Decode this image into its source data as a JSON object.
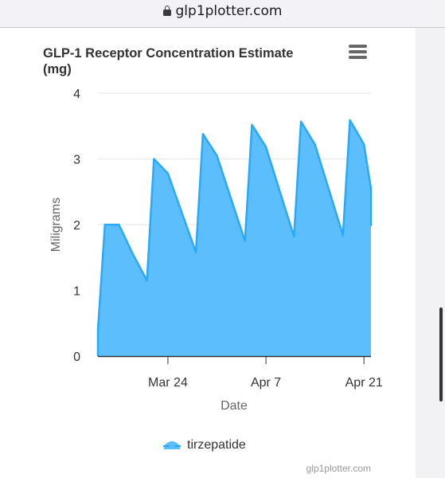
{
  "browser": {
    "url": "glp1plotter.com"
  },
  "chart_menu": {
    "icon": "hamburger-menu-icon"
  },
  "credits": "glp1plotter.com",
  "chart_data": {
    "type": "area",
    "title": "GLP-1 Receptor Concentration Estimate (mg)",
    "xlabel": "Date",
    "ylabel": "Miligrams",
    "ylim": [
      0,
      4
    ],
    "yticks": [
      "0",
      "1",
      "2",
      "3",
      "4"
    ],
    "xlim": [
      "2024-03-14",
      "2024-04-22"
    ],
    "xticks": [
      {
        "date": "2024-03-24",
        "label": "Mar 24"
      },
      {
        "date": "2024-04-07",
        "label": "Apr 7"
      },
      {
        "date": "2024-04-21",
        "label": "Apr 21"
      }
    ],
    "grid": true,
    "legend_position": "bottom-center",
    "colors": {
      "fill": "#5cbefc",
      "line": "#2aa9f7"
    },
    "series": [
      {
        "name": "tirzepatide",
        "points": [
          [
            "2024-03-14",
            0.0
          ],
          [
            "2024-03-14",
            0.4
          ],
          [
            "2024-03-15",
            2.0
          ],
          [
            "2024-03-17",
            2.0
          ],
          [
            "2024-03-19",
            1.55
          ],
          [
            "2024-03-21",
            1.15
          ],
          [
            "2024-03-22",
            3.0
          ],
          [
            "2024-03-24",
            2.78
          ],
          [
            "2024-03-28",
            1.58
          ],
          [
            "2024-03-29",
            3.38
          ],
          [
            "2024-03-31",
            3.05
          ],
          [
            "2024-04-04",
            1.75
          ],
          [
            "2024-04-05",
            3.52
          ],
          [
            "2024-04-07",
            3.18
          ],
          [
            "2024-04-11",
            1.82
          ],
          [
            "2024-04-12",
            3.57
          ],
          [
            "2024-04-14",
            3.22
          ],
          [
            "2024-04-18",
            1.84
          ],
          [
            "2024-04-19",
            3.59
          ],
          [
            "2024-04-21",
            3.22
          ],
          [
            "2024-04-22",
            2.55
          ],
          [
            "2024-04-22",
            1.98
          ]
        ]
      }
    ]
  }
}
